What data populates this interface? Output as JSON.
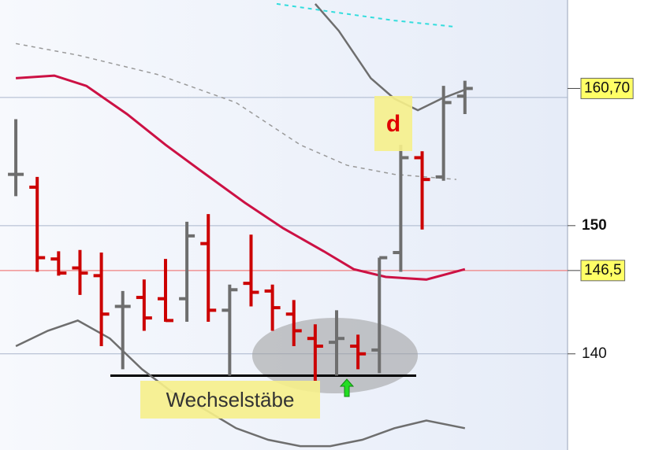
{
  "chart_data": {
    "type": "ohlc",
    "open": [
      154.0,
      153.0,
      147.4,
      146.7,
      146.1,
      143.7,
      144.4,
      144.3,
      144.3,
      148.6,
      143.4,
      145.5,
      144.9,
      143.1,
      141.2,
      140.9,
      140.6,
      140.3,
      147.9,
      155.3,
      153.8,
      160.1
    ],
    "high": [
      158.3,
      153.8,
      148.0,
      148.1,
      147.9,
      144.9,
      145.8,
      147.4,
      150.3,
      150.9,
      145.4,
      149.3,
      145.4,
      144.2,
      142.3,
      143.4,
      141.5,
      147.5,
      156.3,
      155.8,
      160.9,
      161.3
    ],
    "low": [
      152.3,
      146.4,
      146.1,
      144.6,
      140.6,
      138.8,
      141.8,
      142.5,
      142.5,
      142.5,
      138.3,
      143.7,
      141.8,
      140.6,
      137.9,
      138.3,
      138.8,
      138.5,
      146.4,
      149.7,
      153.5,
      158.7
    ],
    "close": [
      154.0,
      147.5,
      146.3,
      146.3,
      143.1,
      143.7,
      142.8,
      142.6,
      149.2,
      143.4,
      145.0,
      144.8,
      143.6,
      141.8,
      140.6,
      141.2,
      140.0,
      147.5,
      155.3,
      153.6,
      159.6,
      160.7
    ],
    "up_color": "#6e6e6e",
    "down_color": "#cc0000",
    "xlim": [
      -0.74,
      25.8
    ],
    "ylim": [
      132.5,
      167.6
    ],
    "yticks": [
      140,
      150
    ],
    "bold_ticks": [
      150
    ],
    "grid_lines": [
      140,
      150,
      160
    ],
    "lines": [
      {
        "color": "#cc1144",
        "width": 3,
        "dash": false,
        "x": [
          0,
          1.8,
          3.3,
          5.2,
          7.0,
          8.8,
          10.7,
          12.5,
          14.4,
          15.8,
          17.3,
          19.2,
          21
        ],
        "values": [
          161.5,
          161.7,
          160.9,
          158.7,
          156.3,
          154.1,
          151.8,
          149.8,
          148.0,
          146.6,
          146.0,
          145.8,
          146.6
        ]
      },
      {
        "color": "#6e6e6e",
        "width": 2.5,
        "dash": false,
        "x": [
          0,
          1.5,
          2.9,
          4.4,
          5.9,
          7.4,
          8.8,
          10.3,
          11.8,
          13.3,
          14.7,
          16.2,
          17.7,
          19.2,
          21
        ],
        "values": [
          140.6,
          141.8,
          142.6,
          141.2,
          138.8,
          136.9,
          135.7,
          134.2,
          133.3,
          132.8,
          132.8,
          133.3,
          134.2,
          134.8,
          134.2
        ]
      },
      {
        "color": "#6e6e6e",
        "width": 2.5,
        "dash": false,
        "x": [
          14.0,
          15.1,
          16.6,
          17.7,
          18.8,
          19.9,
          21
        ],
        "values": [
          167.3,
          165.2,
          161.5,
          159.9,
          159.0,
          159.9,
          160.6
        ]
      },
      {
        "color": "#9a9a9a",
        "width": 1.5,
        "dash": true,
        "x": [
          0,
          2.9,
          6.6,
          10.3,
          13.3,
          15.5,
          17.7,
          20.6
        ],
        "values": [
          164.2,
          163.3,
          161.8,
          159.6,
          156.3,
          154.7,
          154.0,
          153.6
        ]
      },
      {
        "color": "#33dddd",
        "width": 2,
        "dash": true,
        "x": [
          12.2,
          14.7,
          17.7,
          20.6
        ],
        "values": [
          167.3,
          166.7,
          166.0,
          165.5
        ]
      }
    ],
    "markers": [
      {
        "value": 160.7,
        "label": "160,70"
      },
      {
        "value": 146.5,
        "label": "146,5",
        "color": "#f08080"
      }
    ],
    "support_level": 138.3,
    "annotations": [
      {
        "text": "d",
        "color": "#e00000"
      },
      {
        "text": "Wechselstäbe",
        "color": "#333333"
      }
    ]
  }
}
